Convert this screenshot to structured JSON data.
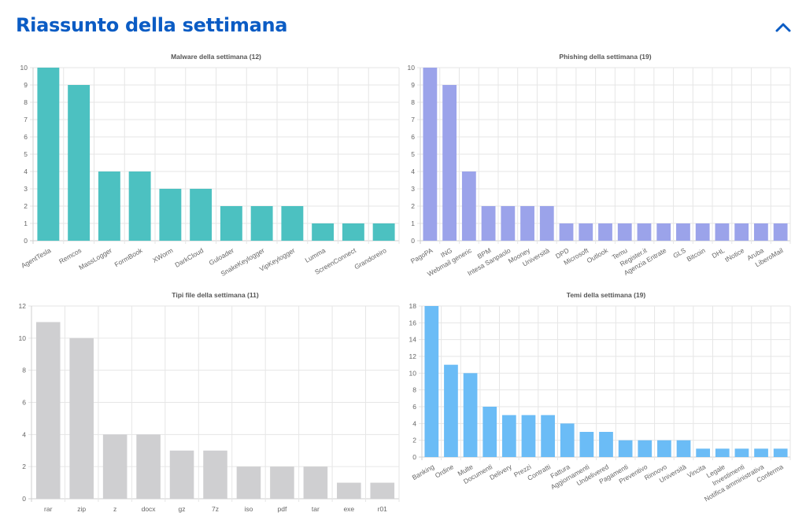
{
  "header": {
    "title": "Riassunto della settimana",
    "collapse_icon": "chevron-up-icon",
    "accent_color": "#0b5cc4"
  },
  "chart_data": [
    {
      "id": "malware",
      "type": "bar",
      "title": "Malware della settimana (12)",
      "color": "#4cc1c1",
      "ylim": [
        0,
        10
      ],
      "yticks": [
        0,
        1,
        2,
        3,
        4,
        5,
        6,
        7,
        8,
        9,
        10
      ],
      "grid": true,
      "rotate_labels": true,
      "categories": [
        "AgentTesla",
        "Remcos",
        "MassLogger",
        "FormBook",
        "XWorm",
        "DarkCloud",
        "Guloader",
        "SnakeKeylogger",
        "VipKeylogger",
        "Lumma",
        "ScreenConnect",
        "Grandoreiro"
      ],
      "values": [
        10,
        9,
        4,
        4,
        3,
        3,
        2,
        2,
        2,
        1,
        1,
        1
      ]
    },
    {
      "id": "phishing",
      "type": "bar",
      "title": "Phishing della settimana (19)",
      "color": "#9ba3ea",
      "ylim": [
        0,
        10
      ],
      "yticks": [
        0,
        1,
        2,
        3,
        4,
        5,
        6,
        7,
        8,
        9,
        10
      ],
      "grid": true,
      "rotate_labels": true,
      "categories": [
        "PagoPA",
        "ING",
        "Webmail generic",
        "BPM",
        "Intesa Sanpaolo",
        "Mooney",
        "Università",
        "DPD",
        "Microsoft",
        "Outlook",
        "Temu",
        "Register.it",
        "Agenzia Entrate",
        "GLS",
        "Bitcoin",
        "DHL",
        "tNotice",
        "Aruba",
        "LiberoMail"
      ],
      "values": [
        10,
        9,
        4,
        2,
        2,
        2,
        2,
        1,
        1,
        1,
        1,
        1,
        1,
        1,
        1,
        1,
        1,
        1,
        1
      ]
    },
    {
      "id": "filetypes",
      "type": "bar",
      "title": "Tipi file della settimana (11)",
      "color": "#cfcfd1",
      "ylim": [
        0,
        12
      ],
      "yticks": [
        0,
        2,
        4,
        6,
        8,
        10,
        12
      ],
      "grid": true,
      "rotate_labels": false,
      "categories": [
        "rar",
        "zip",
        "z",
        "docx",
        "gz",
        "7z",
        "iso",
        "pdf",
        "tar",
        "exe",
        "r01"
      ],
      "values": [
        11,
        10,
        4,
        4,
        3,
        3,
        2,
        2,
        2,
        1,
        1
      ]
    },
    {
      "id": "themes",
      "type": "bar",
      "title": "Temi della settimana (19)",
      "color": "#6bbcf6",
      "ylim": [
        0,
        18
      ],
      "yticks": [
        0,
        2,
        4,
        6,
        8,
        10,
        12,
        14,
        16,
        18
      ],
      "grid": true,
      "rotate_labels": true,
      "categories": [
        "Banking",
        "Ordine",
        "Multe",
        "Documenti",
        "Delivery",
        "Prezzi",
        "Contratti",
        "Fattura",
        "Aggiornamenti",
        "Undelivered",
        "Pagamenti",
        "Preventivo",
        "Rinnovo",
        "Università",
        "Vincita",
        "Legale",
        "Investimenti",
        "Notifica amministrativa",
        "Conferma"
      ],
      "values": [
        18,
        11,
        10,
        6,
        5,
        5,
        5,
        4,
        3,
        3,
        2,
        2,
        2,
        2,
        1,
        1,
        1,
        1,
        1
      ]
    }
  ]
}
